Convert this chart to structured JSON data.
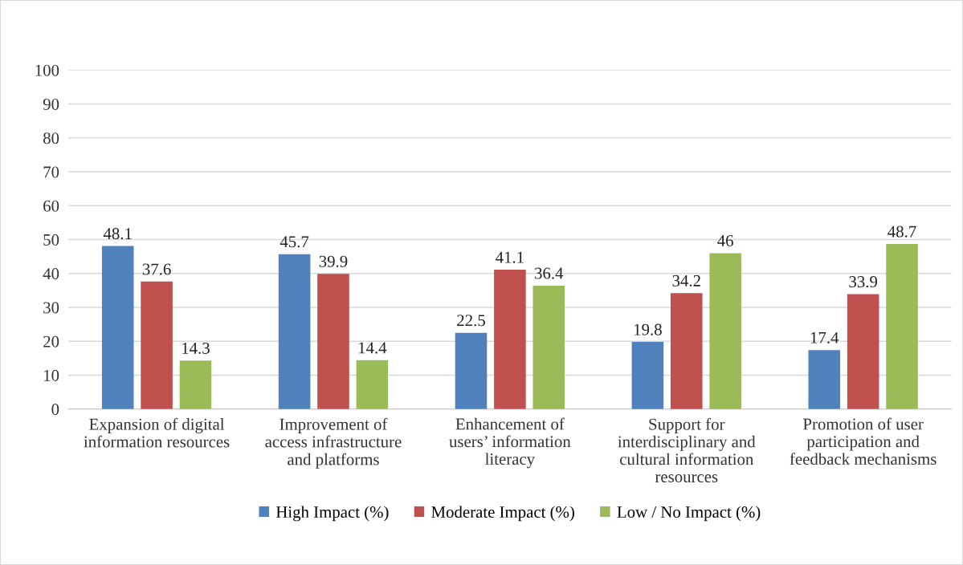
{
  "chart_data": {
    "type": "bar",
    "categories": [
      "Expansion of digital\ninformation resources",
      "Improvement of\naccess infrastructure\nand platforms",
      "Enhancement of\nusers’ information\nliteracy",
      "Support for\ninterdisciplinary and\ncultural information\nresources",
      "Promotion of user\nparticipation and\nfeedback mechanisms"
    ],
    "series": [
      {
        "name": "High Impact (%)",
        "color": "#4f81bd",
        "values": [
          48.1,
          45.7,
          22.5,
          19.8,
          17.4
        ]
      },
      {
        "name": "Moderate Impact (%)",
        "color": "#c0504d",
        "values": [
          37.6,
          39.9,
          41.1,
          34.2,
          33.9
        ]
      },
      {
        "name": "Low / No Impact (%)",
        "color": "#9bbb59",
        "values": [
          14.3,
          14.4,
          36.4,
          46,
          48.7
        ]
      }
    ],
    "ylim": [
      0,
      100
    ],
    "yticks": [
      0,
      10,
      20,
      30,
      40,
      50,
      60,
      70,
      80,
      90,
      100
    ],
    "grid": "y",
    "legend": "bottom",
    "data_labels": true
  }
}
